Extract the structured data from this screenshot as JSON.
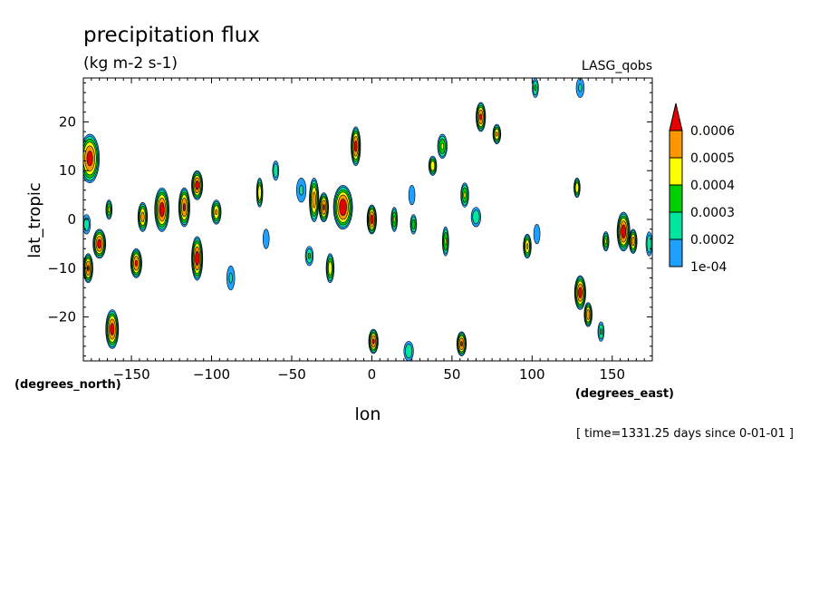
{
  "chart_data": {
    "type": "contour",
    "title": "precipitation flux",
    "subtitle": "(kg m-2 s-1)",
    "dataset": "LASG_qobs",
    "xlabel": "lon",
    "ylabel": "lat_tropic",
    "xunits": "(degrees_east)",
    "yunits": "(degrees_north)",
    "footer": "[ time=1331.25 days since 0-01-01 ]",
    "xlim": [
      -180,
      175
    ],
    "ylim": [
      -29,
      29
    ],
    "xticks": [
      -150,
      -100,
      -50,
      0,
      50,
      100,
      150
    ],
    "yticks": [
      -20,
      -10,
      0,
      10,
      20
    ],
    "levels": [
      0.0001,
      0.0002,
      0.0003,
      0.0004,
      0.0005,
      0.0006
    ],
    "level_labels": [
      "1e-04",
      "0.0002",
      "0.0003",
      "0.0004",
      "0.0005",
      "0.0006"
    ],
    "colors": [
      "#1ea0ff",
      "#00e6a0",
      "#00d000",
      "#ffff00",
      "#ff9600",
      "#e60000"
    ],
    "blobs": [
      {
        "lon": -176,
        "lat": 12.5,
        "rx": 6,
        "ry": 5,
        "peak": 0.00065
      },
      {
        "lon": -170,
        "lat": -5,
        "rx": 4,
        "ry": 3,
        "peak": 0.00065
      },
      {
        "lon": -177,
        "lat": -10,
        "rx": 3,
        "ry": 3,
        "peak": 0.00062
      },
      {
        "lon": -178,
        "lat": -1,
        "rx": 2.5,
        "ry": 2,
        "peak": 0.00028
      },
      {
        "lon": -162,
        "lat": -22.5,
        "rx": 4,
        "ry": 4,
        "peak": 0.00065
      },
      {
        "lon": -164,
        "lat": 2,
        "rx": 2,
        "ry": 2,
        "peak": 0.00042
      },
      {
        "lon": -147,
        "lat": -9,
        "rx": 3.5,
        "ry": 3,
        "peak": 0.00062
      },
      {
        "lon": -143,
        "lat": 0.5,
        "rx": 3,
        "ry": 3,
        "peak": 0.00055
      },
      {
        "lon": -131,
        "lat": 2,
        "rx": 4.5,
        "ry": 4.5,
        "peak": 0.00066
      },
      {
        "lon": -117,
        "lat": 2.5,
        "rx": 3.5,
        "ry": 4,
        "peak": 0.00062
      },
      {
        "lon": -109,
        "lat": 7,
        "rx": 3.5,
        "ry": 3,
        "peak": 0.00065
      },
      {
        "lon": -109,
        "lat": -8,
        "rx": 3.5,
        "ry": 4.5,
        "peak": 0.00066
      },
      {
        "lon": -97,
        "lat": 1.5,
        "rx": 3,
        "ry": 2.5,
        "peak": 0.00052
      },
      {
        "lon": -88,
        "lat": -12,
        "rx": 2.5,
        "ry": 2.5,
        "peak": 0.00022
      },
      {
        "lon": -70,
        "lat": 5.5,
        "rx": 2,
        "ry": 3,
        "peak": 0.0005
      },
      {
        "lon": -60,
        "lat": 10,
        "rx": 2,
        "ry": 2,
        "peak": 0.0003
      },
      {
        "lon": -66,
        "lat": -4,
        "rx": 2,
        "ry": 2,
        "peak": 0.0002
      },
      {
        "lon": -36,
        "lat": 4,
        "rx": 3,
        "ry": 4.5,
        "peak": 0.00056
      },
      {
        "lon": -30,
        "lat": 2.5,
        "rx": 3,
        "ry": 3,
        "peak": 0.00062
      },
      {
        "lon": -18,
        "lat": 2.5,
        "rx": 6,
        "ry": 4.5,
        "peak": 0.00068
      },
      {
        "lon": -26,
        "lat": -10,
        "rx": 2.5,
        "ry": 3,
        "peak": 0.00048
      },
      {
        "lon": -39,
        "lat": -7.5,
        "rx": 2.5,
        "ry": 2,
        "peak": 0.00032
      },
      {
        "lon": -44,
        "lat": 6,
        "rx": 3,
        "ry": 2.5,
        "peak": 0.00022
      },
      {
        "lon": -10,
        "lat": 15,
        "rx": 3,
        "ry": 4,
        "peak": 0.00064
      },
      {
        "lon": 0,
        "lat": 0,
        "rx": 3,
        "ry": 3,
        "peak": 0.00065
      },
      {
        "lon": 1,
        "lat": -25,
        "rx": 3,
        "ry": 2.5,
        "peak": 0.00062
      },
      {
        "lon": 14,
        "lat": 0,
        "rx": 2,
        "ry": 2.5,
        "peak": 0.00042
      },
      {
        "lon": 26,
        "lat": -1,
        "rx": 2,
        "ry": 2,
        "peak": 0.00036
      },
      {
        "lon": 25,
        "lat": 5,
        "rx": 2,
        "ry": 2,
        "peak": 0.0002
      },
      {
        "lon": 23,
        "lat": -27,
        "rx": 3,
        "ry": 2,
        "peak": 0.0003
      },
      {
        "lon": 38,
        "lat": 11,
        "rx": 2.5,
        "ry": 2,
        "peak": 0.0005
      },
      {
        "lon": 44,
        "lat": 15,
        "rx": 3,
        "ry": 2.5,
        "peak": 0.00042
      },
      {
        "lon": 46,
        "lat": -4.5,
        "rx": 2,
        "ry": 3,
        "peak": 0.00042
      },
      {
        "lon": 58,
        "lat": 5,
        "rx": 2.5,
        "ry": 2.5,
        "peak": 0.00042
      },
      {
        "lon": 56,
        "lat": -25.5,
        "rx": 3,
        "ry": 2.5,
        "peak": 0.00062
      },
      {
        "lon": 68,
        "lat": 21,
        "rx": 3,
        "ry": 3,
        "peak": 0.00062
      },
      {
        "lon": 65,
        "lat": 0.5,
        "rx": 3,
        "ry": 2,
        "peak": 0.0003
      },
      {
        "lon": 78,
        "lat": 17.5,
        "rx": 2.5,
        "ry": 2,
        "peak": 0.00052
      },
      {
        "lon": 97,
        "lat": -5.5,
        "rx": 2.5,
        "ry": 2.5,
        "peak": 0.00052
      },
      {
        "lon": 103,
        "lat": -3,
        "rx": 2,
        "ry": 2,
        "peak": 0.0002
      },
      {
        "lon": 102,
        "lat": 27,
        "rx": 2,
        "ry": 2,
        "peak": 0.00032
      },
      {
        "lon": 130,
        "lat": -15,
        "rx": 3.5,
        "ry": 3.5,
        "peak": 0.00065
      },
      {
        "lon": 135,
        "lat": -19.5,
        "rx": 2.5,
        "ry": 2.5,
        "peak": 0.00058
      },
      {
        "lon": 143,
        "lat": -23,
        "rx": 2,
        "ry": 2,
        "peak": 0.00032
      },
      {
        "lon": 128,
        "lat": 6.5,
        "rx": 2,
        "ry": 2,
        "peak": 0.0005
      },
      {
        "lon": 157,
        "lat": -2.5,
        "rx": 4,
        "ry": 4,
        "peak": 0.00067
      },
      {
        "lon": 163,
        "lat": -4.5,
        "rx": 2.5,
        "ry": 2.5,
        "peak": 0.00056
      },
      {
        "lon": 146,
        "lat": -4.5,
        "rx": 2,
        "ry": 2,
        "peak": 0.00042
      },
      {
        "lon": 173,
        "lat": -5,
        "rx": 2,
        "ry": 2.5,
        "peak": 0.0003
      },
      {
        "lon": 130,
        "lat": 27,
        "rx": 2.5,
        "ry": 2,
        "peak": 0.00022
      }
    ]
  },
  "colors": {
    "background": "#ffffff",
    "axes": "#000000"
  }
}
